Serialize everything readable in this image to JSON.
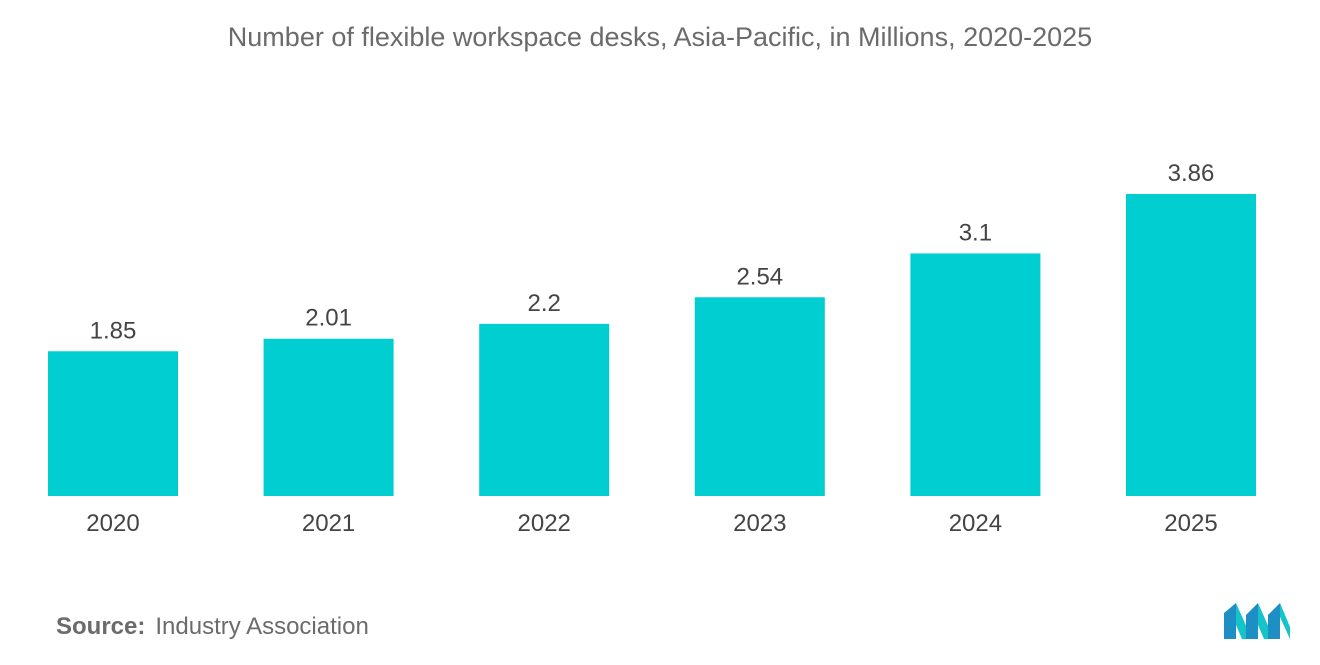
{
  "chart_data": {
    "type": "bar",
    "title": "Number of flexible workspace desks, Asia-Pacific, in Millions, 2020-2025",
    "categories": [
      "2020",
      "2021",
      "2022",
      "2023",
      "2024",
      "2025"
    ],
    "values": [
      1.85,
      2.01,
      2.2,
      2.54,
      3.1,
      3.86
    ],
    "data_labels": [
      "1.85",
      "2.01",
      "2.2",
      "2.54",
      "3.1",
      "3.86"
    ],
    "xlabel": "",
    "ylabel": "",
    "ylim": [
      0,
      3.86
    ],
    "grid": false,
    "legend": "none",
    "bar_color": "#00CED1"
  },
  "source": {
    "label": "Source:",
    "text": "Industry Association"
  },
  "logo": {
    "icon": "mordor-intelligence-logo-icon",
    "colors": [
      "#1d8fc4",
      "#14c4c9"
    ]
  }
}
